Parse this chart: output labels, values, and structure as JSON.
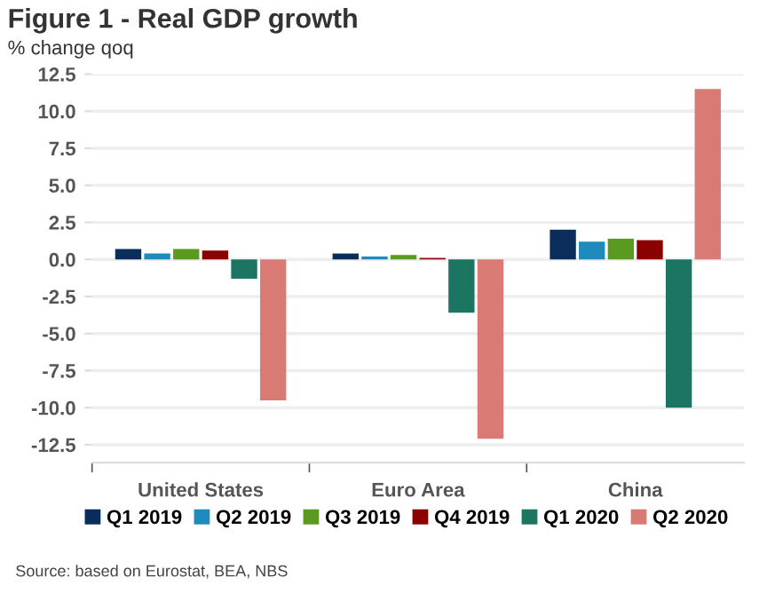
{
  "chart_data": {
    "type": "bar",
    "title": "Figure 1 - Real GDP growth",
    "subtitle": "% change qoq",
    "categories": [
      "United States",
      "Euro Area",
      "China"
    ],
    "series": [
      {
        "name": "Q1 2019",
        "color": "#0b2d5b",
        "values": [
          0.7,
          0.4,
          2.0
        ]
      },
      {
        "name": "Q2 2019",
        "color": "#1f8bbd",
        "values": [
          0.4,
          0.2,
          1.2
        ]
      },
      {
        "name": "Q3 2019",
        "color": "#5a9a1e",
        "values": [
          0.7,
          0.3,
          1.4
        ]
      },
      {
        "name": "Q4 2019",
        "color": "#8b0000",
        "values": [
          0.6,
          0.1,
          1.3
        ]
      },
      {
        "name": "Q1 2020",
        "color": "#1b7560",
        "values": [
          -1.3,
          -3.6,
          -10.0
        ]
      },
      {
        "name": "Q2 2020",
        "color": "#d97b74",
        "values": [
          -9.5,
          -12.1,
          11.5
        ]
      }
    ],
    "ylim": [
      -13.7,
      12.5
    ],
    "yticks": [
      {
        "value": -12.5,
        "label": "-12.5"
      },
      {
        "value": -10,
        "label": "-10.0"
      },
      {
        "value": -7.5,
        "label": "-7.5"
      },
      {
        "value": -5,
        "label": "-5.0"
      },
      {
        "value": -2.5,
        "label": "-2.5"
      },
      {
        "value": 0,
        "label": "0.0"
      },
      {
        "value": 2.5,
        "label": "2.5"
      },
      {
        "value": 5,
        "label": "5.0"
      },
      {
        "value": 7.5,
        "label": "7.5"
      },
      {
        "value": 10,
        "label": "10.0"
      },
      {
        "value": 12.5,
        "label": "12.5"
      }
    ],
    "grid": "y",
    "legend": "bottom",
    "annotations": [
      "Source: based on Eurostat, BEA, NBS"
    ]
  }
}
